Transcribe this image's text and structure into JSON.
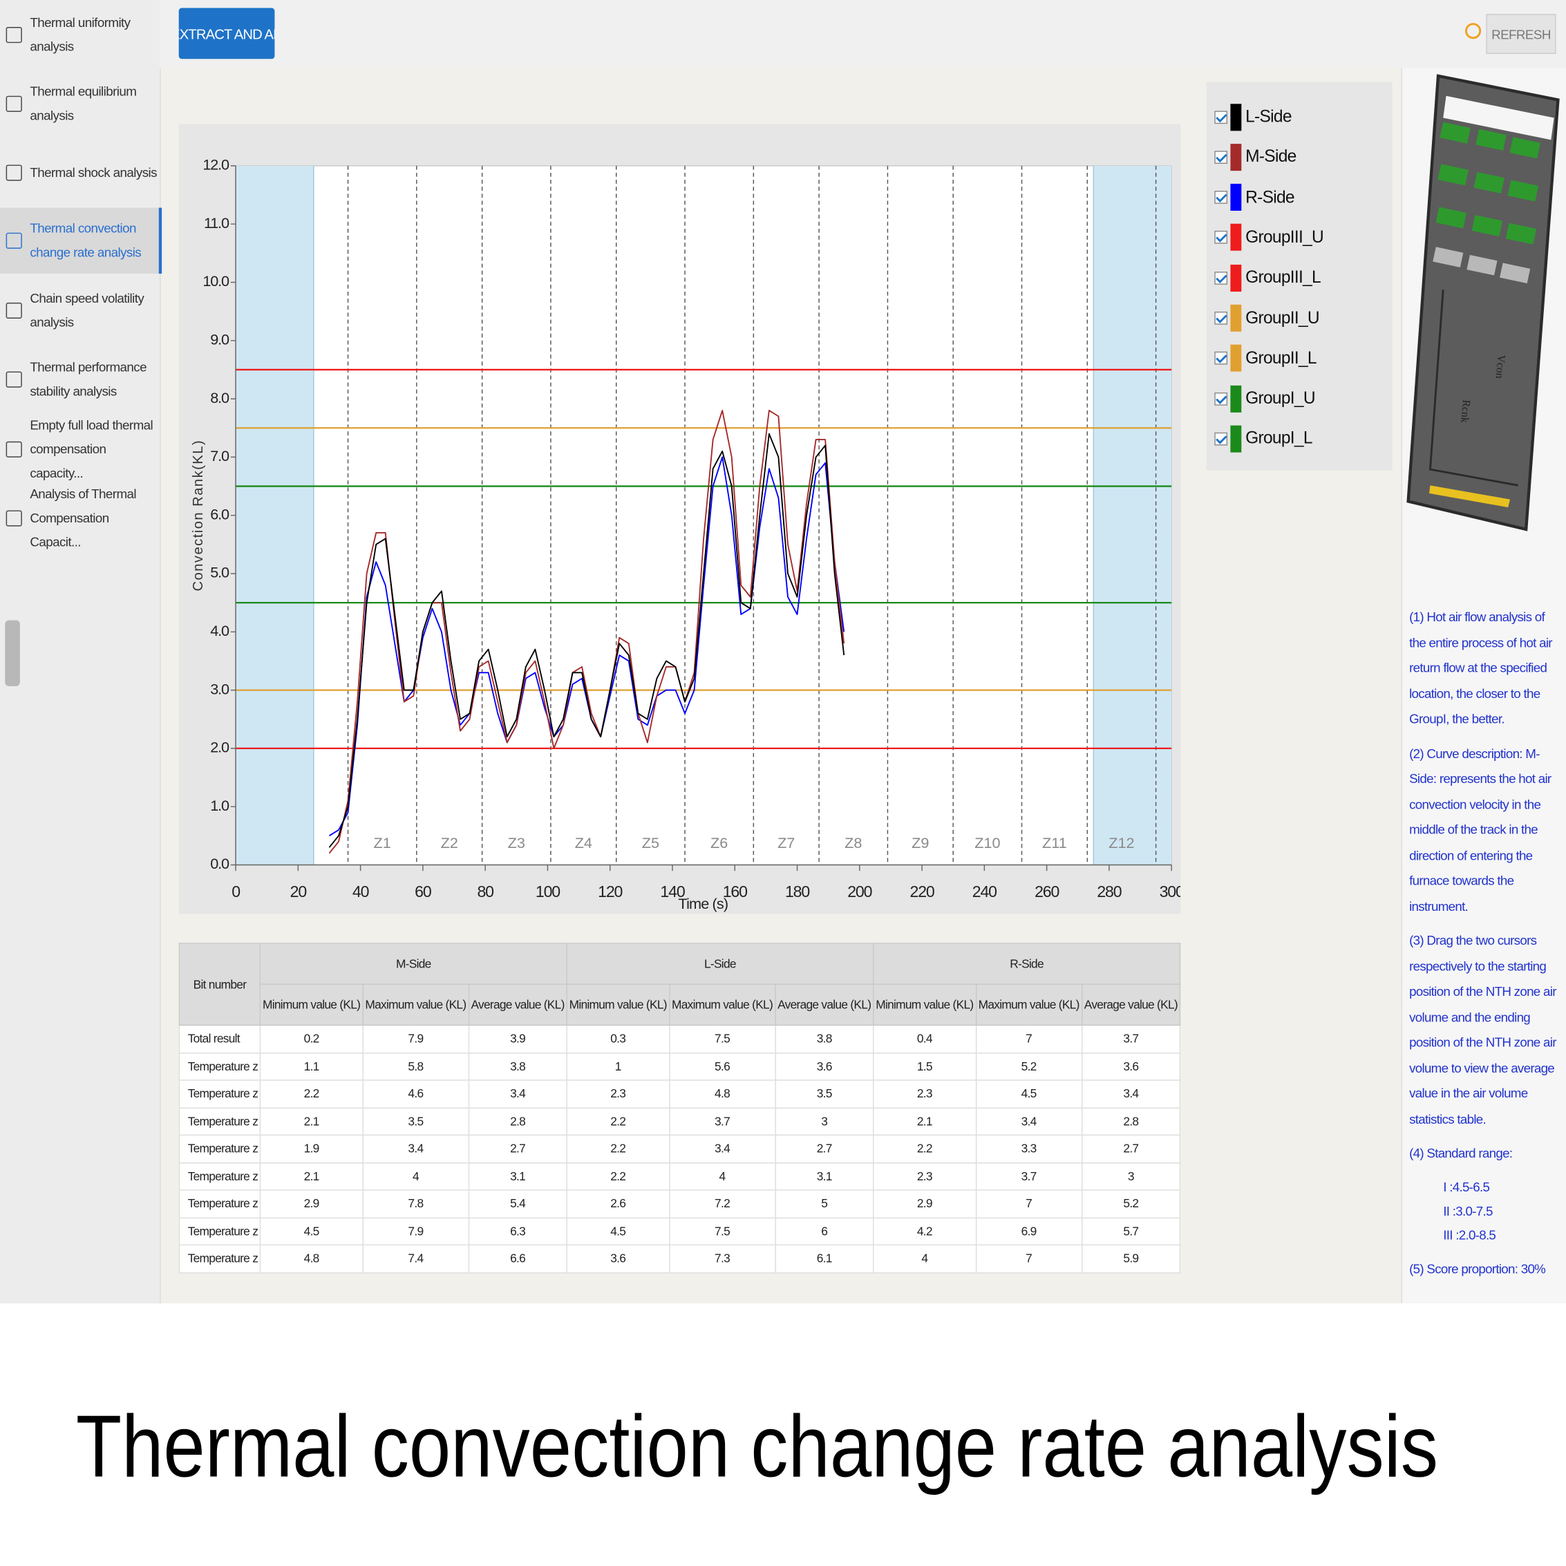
{
  "sidebar": {
    "items": [
      "Thermal uniformity analysis",
      "Thermal equilibrium analysis",
      "Thermal shock analysis",
      "Thermal convection change rate analysis",
      "Chain speed volatility analysis",
      "Thermal performance stability analysis",
      "Empty full load thermal compensation capacity...",
      "Analysis of Thermal Compensation Capacit..."
    ]
  },
  "toolbar": {
    "button": "EXTRACT AND AN",
    "refresh": "REFRESH"
  },
  "chart_data": {
    "type": "line",
    "y_label": "Convection Rank(KL)",
    "x_label": "Time (s)",
    "xlim": [
      0,
      300
    ],
    "xticks": [
      0,
      20,
      40,
      60,
      80,
      100,
      120,
      140,
      160,
      180,
      200,
      220,
      240,
      260,
      280,
      300
    ],
    "ylim": [
      0,
      12
    ],
    "yticks": [
      {
        "value": 0,
        "label": "0.0"
      },
      {
        "value": 1,
        "label": "1.0"
      },
      {
        "value": 2,
        "label": "2.0"
      },
      {
        "value": 3,
        "label": "3.0"
      },
      {
        "value": 4,
        "label": "4.0"
      },
      {
        "value": 5,
        "label": "5.0"
      },
      {
        "value": 6,
        "label": "6.0"
      },
      {
        "value": 7,
        "label": "7.0"
      },
      {
        "value": 8,
        "label": "8.0"
      },
      {
        "value": 9,
        "label": "9.0"
      },
      {
        "value": 10,
        "label": "10.0"
      },
      {
        "value": 11,
        "label": "11.0"
      },
      {
        "value": 12,
        "label": "12.0"
      }
    ],
    "x": [
      30,
      33,
      36,
      39,
      42,
      45,
      48,
      51,
      54,
      57,
      60,
      63,
      66,
      69,
      72,
      75,
      78,
      81,
      84,
      87,
      90,
      93,
      96,
      99,
      102,
      105,
      108,
      111,
      114,
      117,
      120,
      123,
      126,
      129,
      132,
      135,
      138,
      141,
      144,
      147,
      150,
      153,
      156,
      159,
      162,
      165,
      168,
      171,
      174,
      177,
      180,
      183,
      186,
      189,
      192,
      195
    ],
    "series": [
      {
        "name": "L-Side",
        "color": "#000000",
        "values": [
          0.3,
          0.5,
          1.0,
          2.5,
          4.5,
          5.5,
          5.6,
          4.3,
          3.0,
          3.0,
          4.0,
          4.5,
          4.7,
          3.5,
          2.5,
          2.6,
          3.5,
          3.7,
          3.0,
          2.2,
          2.5,
          3.4,
          3.7,
          3.0,
          2.2,
          2.5,
          3.3,
          3.3,
          2.5,
          2.2,
          3.0,
          3.8,
          3.6,
          2.6,
          2.5,
          3.2,
          3.5,
          3.4,
          2.8,
          3.2,
          5.0,
          6.8,
          7.1,
          6.5,
          4.5,
          4.4,
          6.0,
          7.4,
          7.0,
          5.0,
          4.6,
          6.0,
          7.0,
          7.2,
          5.0,
          3.6
        ]
      },
      {
        "name": "M-Side",
        "color": "#a52a2a",
        "values": [
          0.2,
          0.4,
          1.1,
          2.8,
          5.0,
          5.7,
          5.7,
          4.2,
          2.8,
          2.9,
          4.0,
          4.5,
          4.5,
          3.3,
          2.3,
          2.5,
          3.4,
          3.5,
          2.8,
          2.1,
          2.4,
          3.3,
          3.5,
          2.8,
          2.0,
          2.4,
          3.3,
          3.4,
          2.6,
          2.2,
          3.0,
          3.9,
          3.8,
          2.6,
          2.1,
          2.9,
          3.4,
          3.4,
          2.8,
          3.3,
          5.6,
          7.3,
          7.8,
          7.0,
          4.8,
          4.6,
          6.5,
          7.8,
          7.7,
          5.5,
          4.7,
          6.2,
          7.3,
          7.3,
          5.2,
          3.8
        ]
      },
      {
        "name": "R-Side",
        "color": "#0000ff",
        "values": [
          0.5,
          0.6,
          0.9,
          2.4,
          4.6,
          5.2,
          4.8,
          3.8,
          2.8,
          3.0,
          3.9,
          4.4,
          4.0,
          3.0,
          2.4,
          2.6,
          3.3,
          3.3,
          2.6,
          2.1,
          2.4,
          3.2,
          3.3,
          2.7,
          2.2,
          2.4,
          3.1,
          3.2,
          2.5,
          2.2,
          2.9,
          3.6,
          3.5,
          2.5,
          2.4,
          2.9,
          3.0,
          3.0,
          2.6,
          3.0,
          4.8,
          6.5,
          7.0,
          6.0,
          4.3,
          4.4,
          5.8,
          6.8,
          6.3,
          4.6,
          4.3,
          5.6,
          6.7,
          6.9,
          5.2,
          4.0
        ]
      }
    ],
    "reference_lines": [
      {
        "name": "GroupIII_U",
        "color": "#ee1c1c",
        "value": 8.5
      },
      {
        "name": "GroupIII_L",
        "color": "#ee1c1c",
        "value": 2.0
      },
      {
        "name": "GroupII_U",
        "color": "#e0a030",
        "value": 7.5
      },
      {
        "name": "GroupII_L",
        "color": "#e0a030",
        "value": 3.0
      },
      {
        "name": "GroupI_U",
        "color": "#1a8a1a",
        "value": 6.5
      },
      {
        "name": "GroupI_L",
        "color": "#1a8a1a",
        "value": 4.5
      }
    ],
    "zones": {
      "labels": [
        "Z1",
        "Z2",
        "Z3",
        "Z4",
        "Z5",
        "Z6",
        "Z7",
        "Z8",
        "Z9",
        "Z10",
        "Z11",
        "Z12"
      ],
      "edges": [
        36,
        58,
        79,
        101,
        122,
        144,
        166,
        187,
        209,
        230,
        252,
        273,
        295
      ]
    },
    "cursors": [
      25,
      275
    ]
  },
  "table": {
    "corner": "Bit number",
    "groups": [
      "M-Side",
      "L-Side",
      "R-Side"
    ],
    "columns": [
      "Minimum value (KL)",
      "Maximum value (KL)",
      "Average value (KL)"
    ],
    "rows": [
      [
        "Total result",
        0.2,
        7.9,
        3.9,
        0.3,
        7.5,
        3.8,
        0.4,
        7,
        3.7
      ],
      [
        "Temperature z",
        1.1,
        5.8,
        3.8,
        1,
        5.6,
        3.6,
        1.5,
        5.2,
        3.6
      ],
      [
        "Temperature z",
        2.2,
        4.6,
        3.4,
        2.3,
        4.8,
        3.5,
        2.3,
        4.5,
        3.4
      ],
      [
        "Temperature z",
        2.1,
        3.5,
        2.8,
        2.2,
        3.7,
        3,
        2.1,
        3.4,
        2.8
      ],
      [
        "Temperature z",
        1.9,
        3.4,
        2.7,
        2.2,
        3.4,
        2.7,
        2.2,
        3.3,
        2.7
      ],
      [
        "Temperature z",
        2.1,
        4,
        3.1,
        2.2,
        4,
        3.1,
        2.3,
        3.7,
        3
      ],
      [
        "Temperature z",
        2.9,
        7.8,
        5.4,
        2.6,
        7.2,
        5,
        2.9,
        7,
        5.2
      ],
      [
        "Temperature z",
        4.5,
        7.9,
        6.3,
        4.5,
        7.5,
        6,
        4.2,
        6.9,
        5.7
      ],
      [
        "Temperature z",
        4.8,
        7.4,
        6.6,
        3.6,
        7.3,
        6.1,
        4,
        7,
        5.9
      ]
    ]
  },
  "notes": {
    "paragraphs": [
      "(1) Hot air flow analysis of the entire process of hot air return flow at the specified location, the closer to the GroupI, the better.",
      "(2) Curve description: M-Side: represents the hot air convection velocity in the middle of the track in the direction of entering the furnace towards the instrument.",
      "(3) Drag the two cursors respectively to the starting position of the NTH zone air volume and the ending position of the NTH zone air volume to view the average value in the air volume statistics table.",
      "(4) Standard range:"
    ],
    "ranges": [
      "I :4.5-6.5",
      "II :3.0-7.5",
      "III :2.0-8.5"
    ],
    "score": "(5) Score proportion: 30%"
  },
  "device": {
    "labels": [
      "Vcon",
      "Rcnk"
    ]
  },
  "caption": "Thermal convection change rate analysis"
}
